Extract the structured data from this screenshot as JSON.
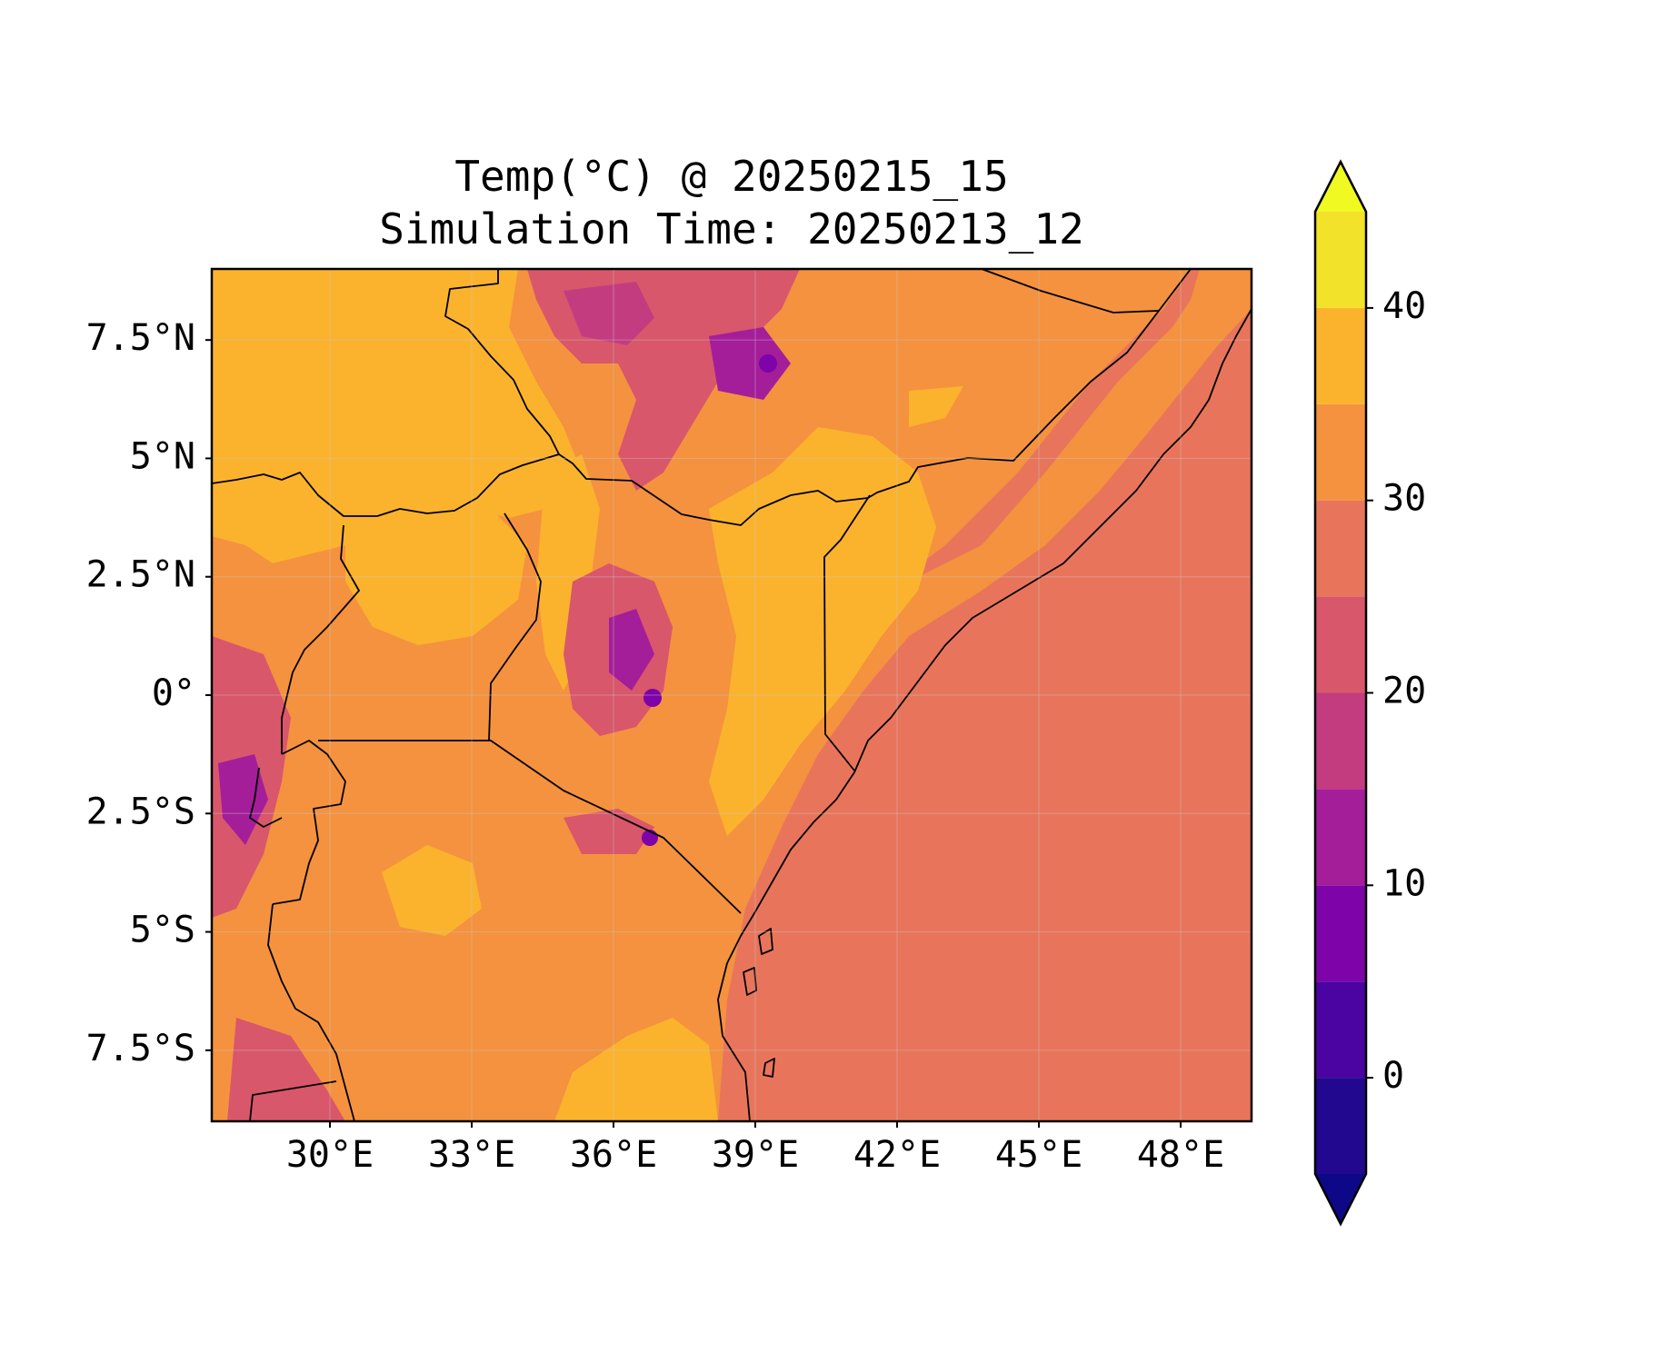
{
  "figure": {
    "title_line1": "Temp(°C) @ 20250215_15",
    "title_line2": "Simulation Time: 20250213_12"
  },
  "map": {
    "variable": "Temperature",
    "units": "°C",
    "extent": {
      "lon_min": 27.5,
      "lon_max": 49.5,
      "lat_min": -9,
      "lat_max": 9
    },
    "lat_ticks": [
      {
        "value": 7.5,
        "label": "7.5°N"
      },
      {
        "value": 5,
        "label": "5°N"
      },
      {
        "value": 2.5,
        "label": "2.5°N"
      },
      {
        "value": 0,
        "label": "0°"
      },
      {
        "value": -2.5,
        "label": "2.5°S"
      },
      {
        "value": -5,
        "label": "5°S"
      },
      {
        "value": -7.5,
        "label": "7.5°S"
      }
    ],
    "lon_ticks": [
      {
        "value": 30,
        "label": "30°E"
      },
      {
        "value": 33,
        "label": "33°E"
      },
      {
        "value": 36,
        "label": "36°E"
      },
      {
        "value": 39,
        "label": "39°E"
      },
      {
        "value": 42,
        "label": "42°E"
      },
      {
        "value": 45,
        "label": "45°E"
      },
      {
        "value": 48,
        "label": "48°E"
      }
    ],
    "gridlines": true
  },
  "colorbar": {
    "levels": [
      -5,
      0,
      5,
      10,
      15,
      20,
      25,
      30,
      35,
      40,
      45
    ],
    "colors": [
      "#22078f",
      "#4b03a1",
      "#7e03a8",
      "#a41e9a",
      "#c43c80",
      "#d8576b",
      "#e8755b",
      "#f4923f",
      "#fbb32e",
      "#f3e22a"
    ],
    "under_color": "#0d0887",
    "over_color": "#f0f921",
    "ticks": [
      {
        "value": 0,
        "label": "0"
      },
      {
        "value": 10,
        "label": "10"
      },
      {
        "value": 20,
        "label": "20"
      },
      {
        "value": 30,
        "label": "30"
      },
      {
        "value": 40,
        "label": "40"
      }
    ]
  }
}
